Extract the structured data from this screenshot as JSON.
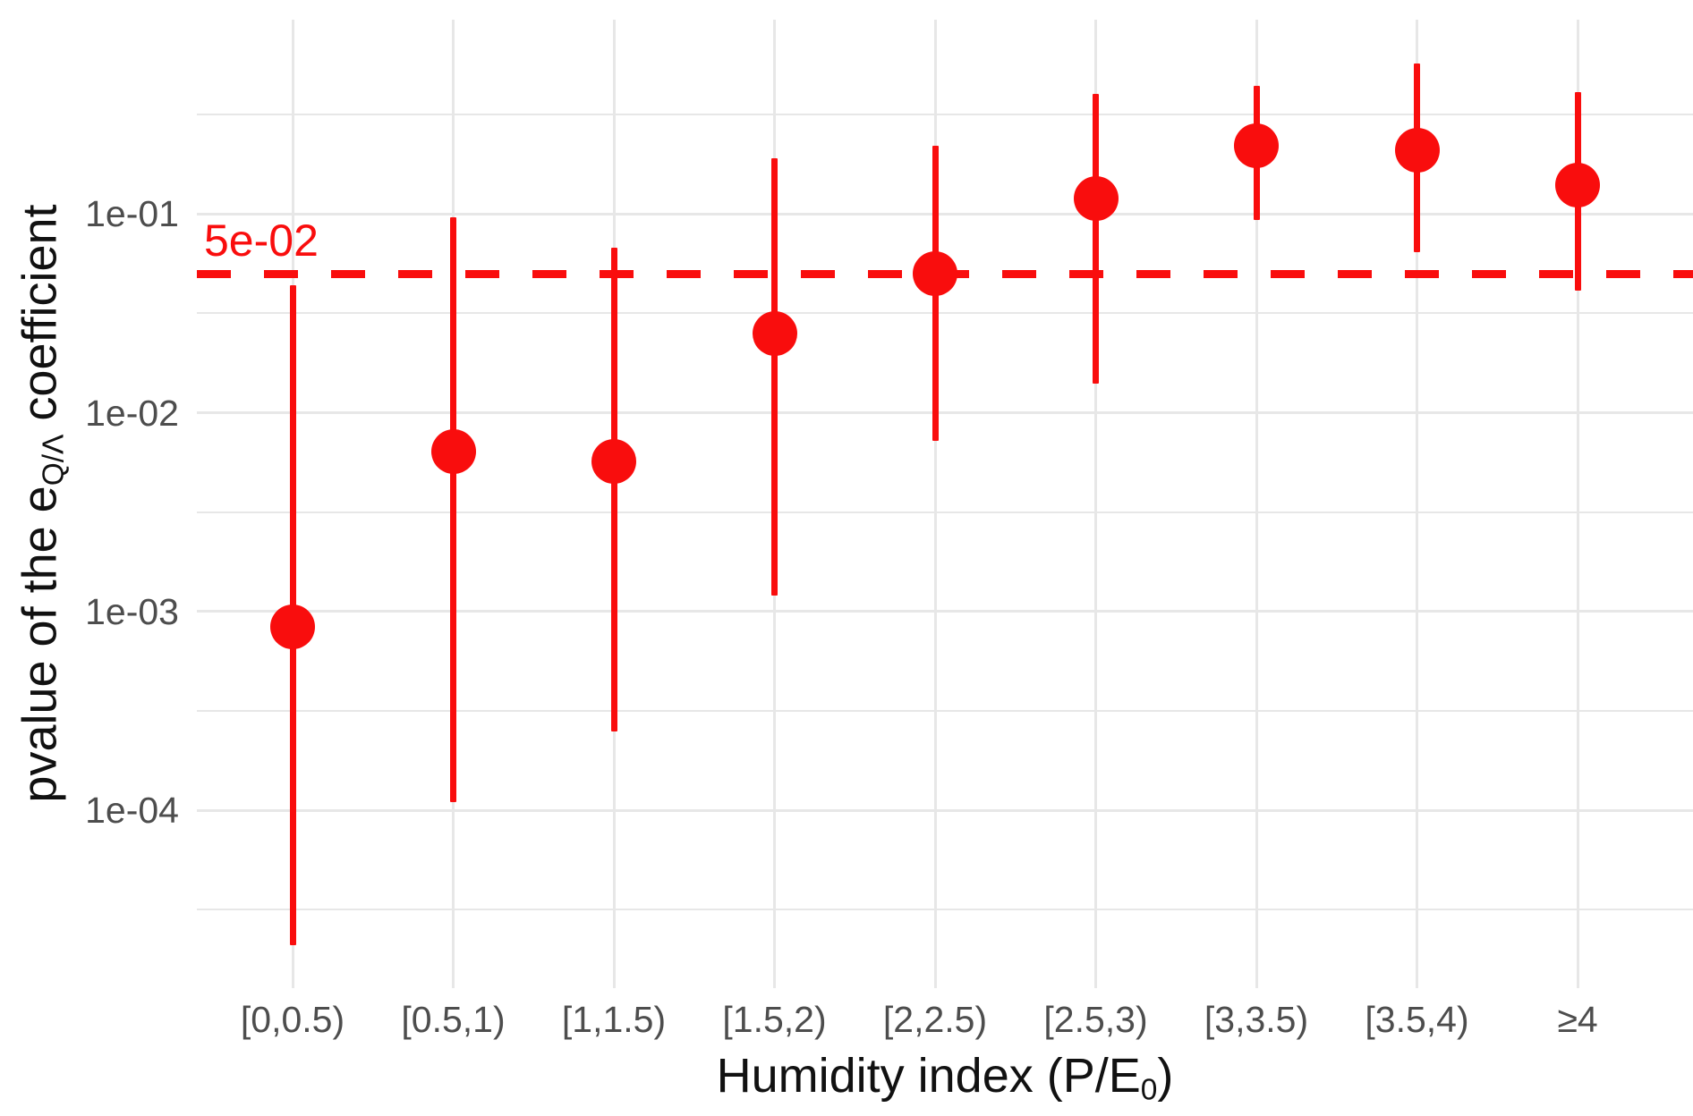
{
  "chart_data": {
    "type": "scatter",
    "title": "",
    "xlabel": "Humidity index (P/E0)",
    "xlabel_parts": {
      "prefix": "Humidity index (P/E",
      "sub": "0",
      "suffix": ")"
    },
    "ylabel": "pvalue of the eQ/Λ coefficient",
    "ylabel_parts": {
      "prefix": "pvalue of the e",
      "sub": "Q/Λ",
      "suffix": " coefficient"
    },
    "categories": [
      "[0,0.5)",
      "[0.5,1)",
      "[1,1.5)",
      "[1.5,2)",
      "[2,2.5)",
      "[2.5,3)",
      "[3,3.5)",
      "[3.5,4)",
      "≥4"
    ],
    "series": [
      {
        "name": "pvalue",
        "values": [
          0.00084,
          0.0064,
          0.0057,
          0.025,
          0.05,
          0.12,
          0.22,
          0.21,
          0.14
        ],
        "lower": [
          2.1e-05,
          0.00011,
          0.00025,
          0.0012,
          0.0072,
          0.014,
          0.093,
          0.064,
          0.041
        ],
        "upper": [
          0.044,
          0.096,
          0.068,
          0.19,
          0.22,
          0.4,
          0.44,
          0.57,
          0.41
        ]
      }
    ],
    "yscale": "log",
    "ylim": [
      1.3e-05,
      0.95
    ],
    "yticks": [
      {
        "label": "1e-01",
        "value": 0.1
      },
      {
        "label": "1e-02",
        "value": 0.01
      },
      {
        "label": "1e-03",
        "value": 0.001
      },
      {
        "label": "1e-04",
        "value": 0.0001
      }
    ],
    "minor_gridlines": [
      0.3162,
      0.03162,
      0.003162,
      0.0003162,
      3.162e-05
    ],
    "threshold": {
      "value": 0.05,
      "label": "5e-02"
    },
    "grid": true,
    "legend": false,
    "colors": {
      "point": "#f90d0d",
      "threshold": "#f90d0d",
      "threshold_text": "#f90d0d",
      "grid": "#e7e7e7",
      "tick_text": "#4d4d4d",
      "title_text": "#111111",
      "background": "#ffffff"
    }
  }
}
